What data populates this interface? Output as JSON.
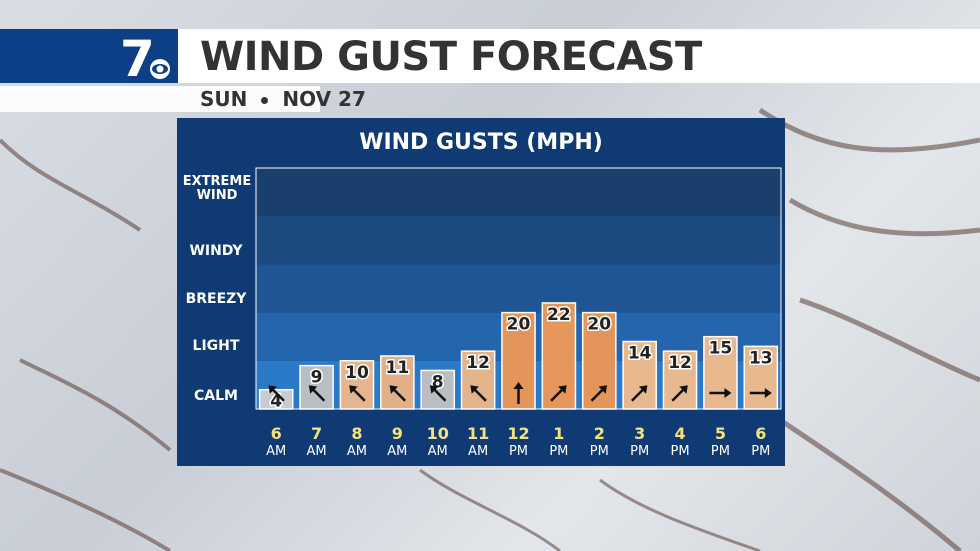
{
  "header": {
    "title": "WIND GUST FORECAST",
    "day": "SUN",
    "date": "NOV 27",
    "logo_text": "7"
  },
  "chart_data": {
    "type": "bar",
    "title": "WIND GUSTS (MPH)",
    "categories": [
      {
        "hour": "6",
        "ampm": "AM"
      },
      {
        "hour": "7",
        "ampm": "AM"
      },
      {
        "hour": "8",
        "ampm": "AM"
      },
      {
        "hour": "9",
        "ampm": "AM"
      },
      {
        "hour": "10",
        "ampm": "AM"
      },
      {
        "hour": "11",
        "ampm": "AM"
      },
      {
        "hour": "12",
        "ampm": "PM"
      },
      {
        "hour": "1",
        "ampm": "PM"
      },
      {
        "hour": "2",
        "ampm": "PM"
      },
      {
        "hour": "3",
        "ampm": "PM"
      },
      {
        "hour": "4",
        "ampm": "PM"
      },
      {
        "hour": "5",
        "ampm": "PM"
      },
      {
        "hour": "6",
        "ampm": "PM"
      }
    ],
    "values": [
      4,
      9,
      10,
      11,
      8,
      12,
      20,
      22,
      20,
      14,
      12,
      15,
      13
    ],
    "wind_direction_deg": [
      315,
      315,
      315,
      315,
      315,
      315,
      0,
      45,
      45,
      45,
      45,
      90,
      90
    ],
    "bar_colors": [
      "#c7ccd4",
      "#b9bdc4",
      "#e5b58f",
      "#e2b088",
      "#b9bdc4",
      "#e3b38c",
      "#e3955a",
      "#e6965b",
      "#e3955a",
      "#e8b98e",
      "#e8b98e",
      "#e8b98e",
      "#e8b98e"
    ],
    "bands": [
      "CALM",
      "LIGHT",
      "BREEZY",
      "WINDY",
      "EXTREME WIND"
    ],
    "ylim": [
      0,
      50
    ]
  },
  "colors": {
    "brand_blue": "#0d3f86",
    "panel_bg": "#0f3a74",
    "hour_label": "#f5e27a"
  }
}
